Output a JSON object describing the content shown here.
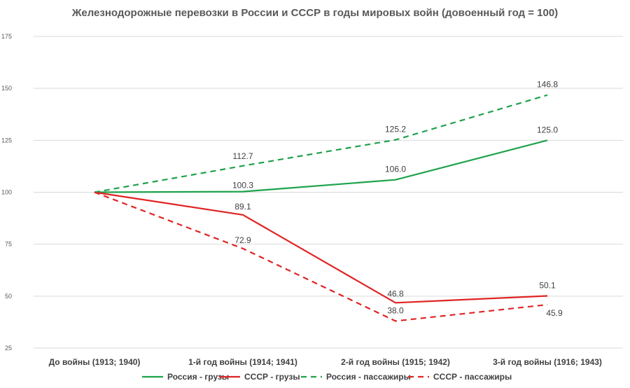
{
  "chart_data": {
    "type": "line",
    "title": "Железнодорожные перевозки в России и СССР в годы мировых войн (довоенный год = 100)",
    "categories": [
      "До войны (1913; 1940)",
      "1-й год войны (1914; 1941)",
      "2-й год войны (1915; 1942)",
      "3-й год войны (1916; 1943)"
    ],
    "ylim": [
      25,
      175
    ],
    "yticks": [
      25,
      50,
      75,
      100,
      125,
      150,
      175
    ],
    "grid": true,
    "legend_position": "bottom",
    "series": [
      {
        "name": "Россия - грузы",
        "color": "#1ea24b",
        "dash": "solid",
        "values": [
          100,
          100.3,
          106.0,
          125.0
        ],
        "labels": [
          "",
          "100.3",
          "106.0",
          "125.0"
        ]
      },
      {
        "name": "СССР - грузы",
        "color": "#e02424",
        "dash": "solid",
        "values": [
          100,
          89.1,
          46.8,
          50.1
        ],
        "labels": [
          "",
          "89.1",
          "46.8",
          "50.1"
        ]
      },
      {
        "name": "Россия - пассажиры",
        "color": "#1ea24b",
        "dash": "dashed",
        "values": [
          100,
          112.7,
          125.2,
          146.8
        ],
        "labels": [
          "",
          "112.7",
          "125.2",
          "146.8"
        ]
      },
      {
        "name": "СССР - пассажиры",
        "color": "#e02424",
        "dash": "dashed",
        "values": [
          100,
          72.9,
          38.0,
          45.9
        ],
        "labels": [
          "",
          "72.9",
          "38.0",
          "45.9"
        ]
      }
    ]
  }
}
